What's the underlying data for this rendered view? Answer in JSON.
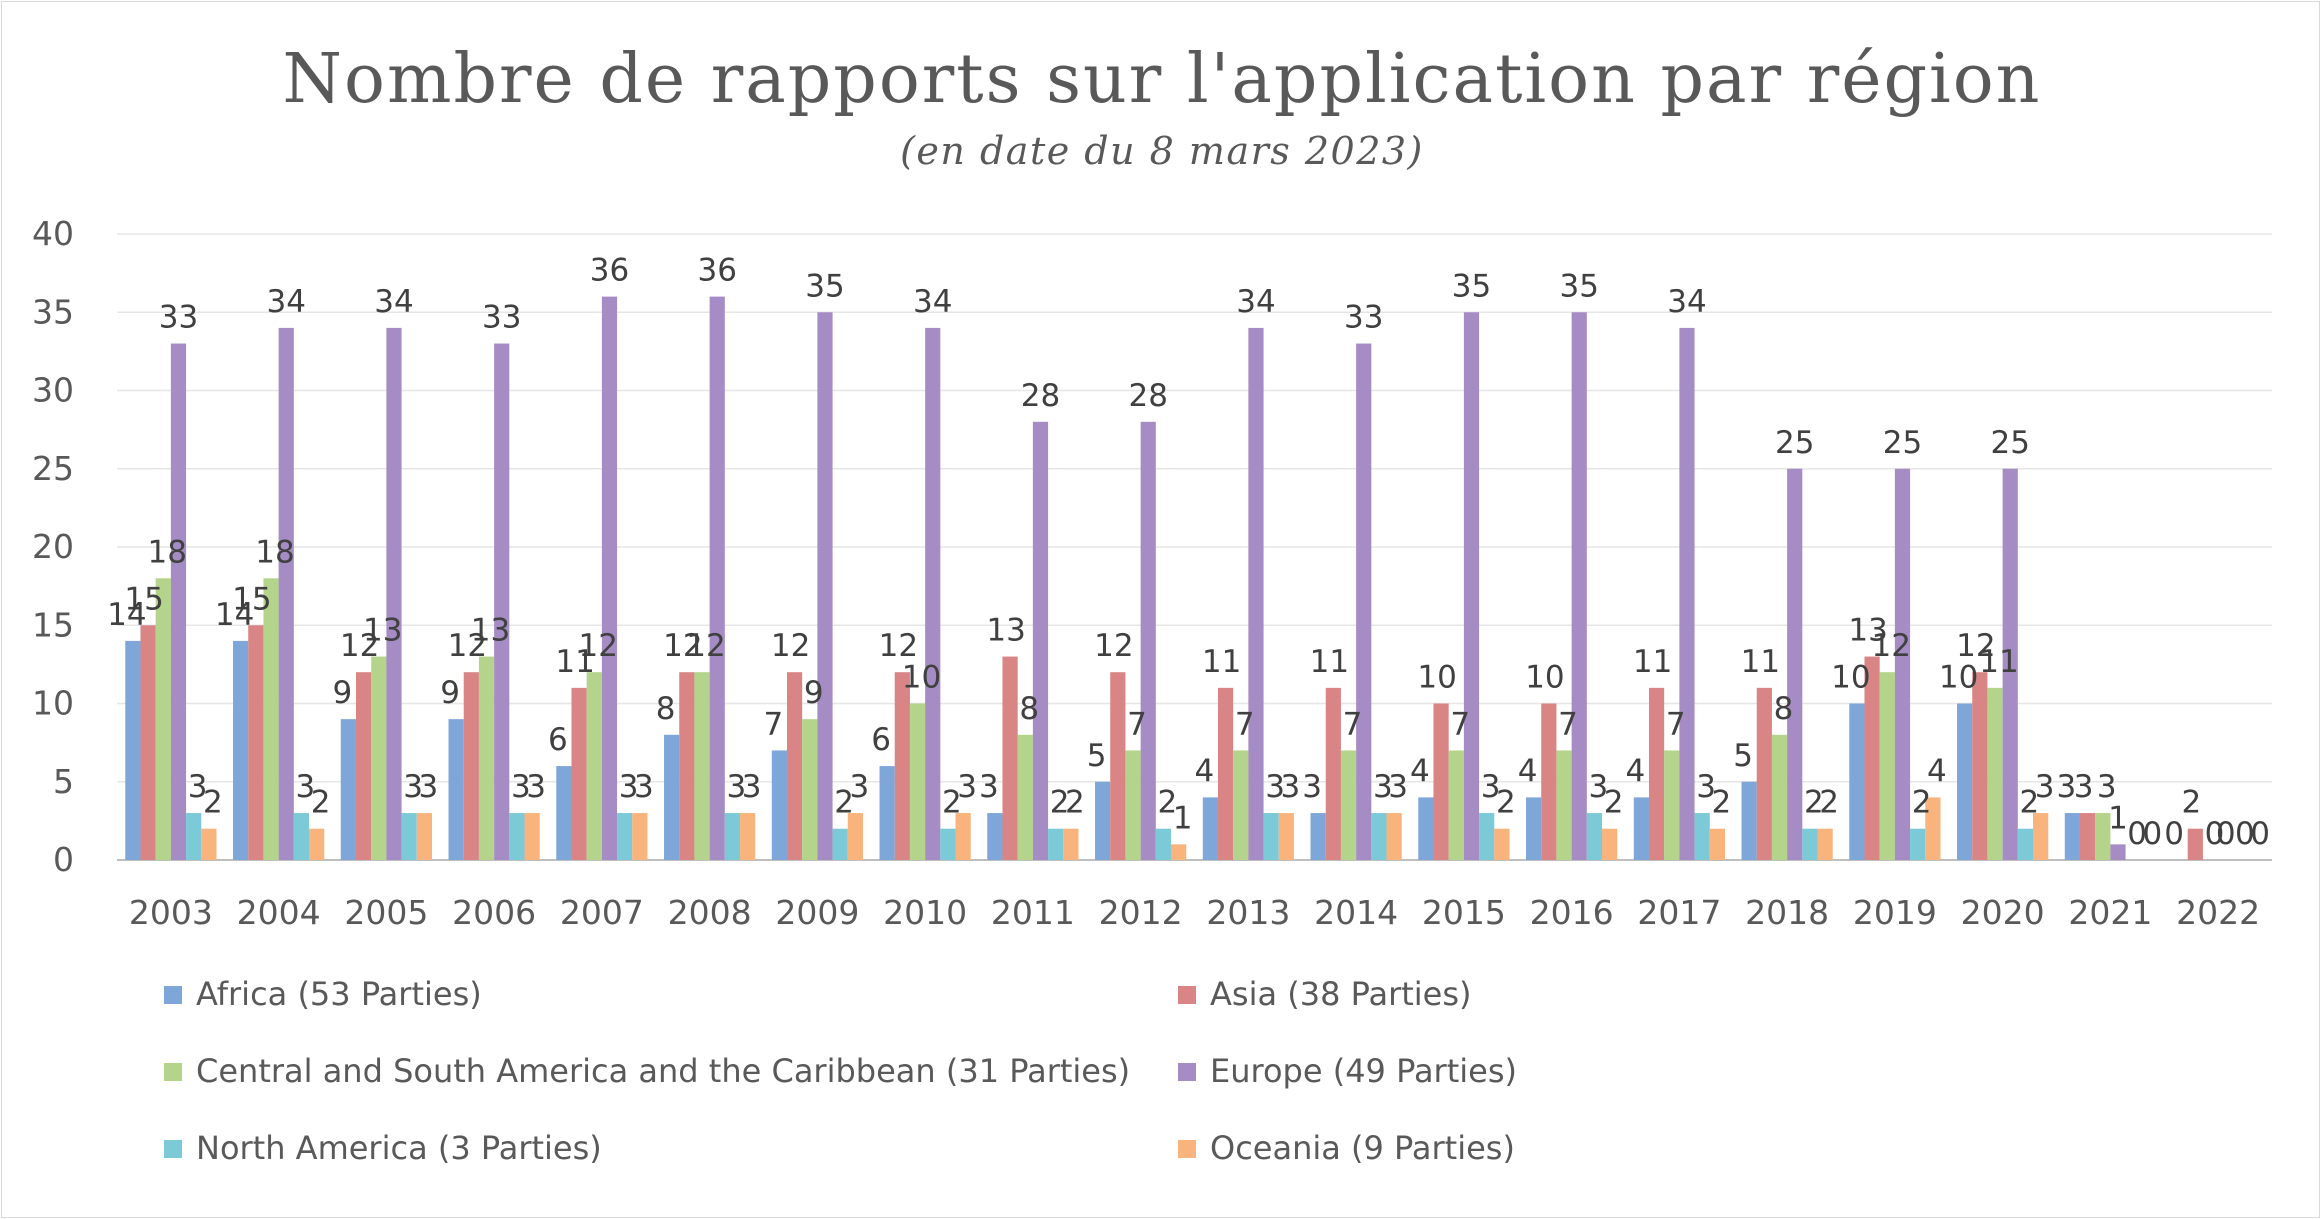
{
  "chart_data": {
    "type": "bar",
    "title": "Nombre de rapports sur l'application par région",
    "subtitle": "(en date du 8 mars 2023)",
    "xlabel": "",
    "ylabel": "",
    "ylim": [
      0,
      40
    ],
    "yticks": [
      "0",
      "5",
      "10",
      "15",
      "20",
      "25",
      "30",
      "35",
      "40"
    ],
    "grid": true,
    "legend_position": "bottom",
    "categories": [
      "2003",
      "2004",
      "2005",
      "2006",
      "2007",
      "2008",
      "2009",
      "2010",
      "2011",
      "2012",
      "2013",
      "2014",
      "2015",
      "2016",
      "2017",
      "2018",
      "2019",
      "2020",
      "2021",
      "2022"
    ],
    "series": [
      {
        "name": "Africa (53 Parties)",
        "color": "#7ea6d8",
        "values": [
          14,
          14,
          9,
          9,
          6,
          8,
          7,
          6,
          3,
          5,
          4,
          3,
          4,
          4,
          4,
          5,
          10,
          10,
          3,
          0
        ]
      },
      {
        "name": "Asia (38 Parties)",
        "color": "#d98585",
        "values": [
          15,
          15,
          12,
          12,
          11,
          12,
          12,
          12,
          13,
          12,
          11,
          11,
          10,
          10,
          11,
          11,
          13,
          12,
          3,
          2
        ]
      },
      {
        "name": "Central and South America and the Caribbean (31 Parties)",
        "color": "#b3d48a",
        "values": [
          18,
          18,
          13,
          13,
          12,
          12,
          9,
          10,
          8,
          7,
          7,
          7,
          7,
          7,
          7,
          8,
          12,
          11,
          3,
          0
        ]
      },
      {
        "name": "Europe (49 Parties)",
        "color": "#a68cc4",
        "values": [
          33,
          34,
          34,
          33,
          36,
          36,
          35,
          34,
          28,
          28,
          34,
          33,
          35,
          35,
          34,
          25,
          25,
          25,
          1,
          0
        ]
      },
      {
        "name": "North America (3 Parties)",
        "color": "#7ccad8",
        "values": [
          3,
          3,
          3,
          3,
          3,
          3,
          2,
          2,
          2,
          2,
          3,
          3,
          3,
          3,
          3,
          2,
          2,
          2,
          0,
          0
        ]
      },
      {
        "name": "Oceania (9 Parties)",
        "color": "#f8b47c",
        "values": [
          2,
          2,
          3,
          3,
          3,
          3,
          3,
          3,
          2,
          1,
          3,
          3,
          2,
          2,
          2,
          2,
          4,
          3,
          0,
          0
        ]
      }
    ]
  }
}
